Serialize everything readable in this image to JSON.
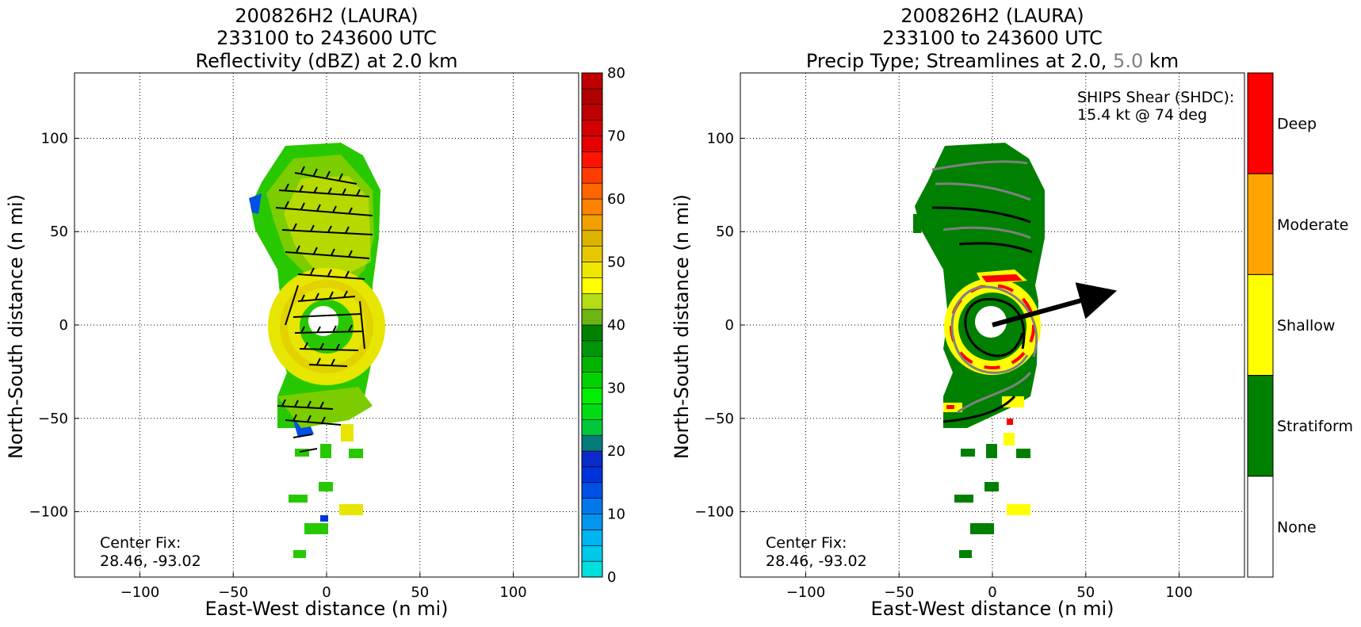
{
  "chart_data": [
    {
      "type": "heatmap",
      "title_lines": [
        "200826H2 (LAURA)",
        "233100 to 243600 UTC",
        "Reflectivity (dBZ) at 2.0 km"
      ],
      "xlabel": "East-West distance (n mi)",
      "ylabel": "North-South distance (n mi)",
      "xlim": [
        -135,
        135
      ],
      "ylim": [
        -135,
        135
      ],
      "xticks": [
        -100,
        -50,
        0,
        50,
        100
      ],
      "yticks": [
        -100,
        -50,
        0,
        50,
        100
      ],
      "grid": true,
      "annotation_lines": [
        "Center Fix:",
        "28.46, -93.02"
      ],
      "colorbar": {
        "range": [
          0,
          80
        ],
        "step": 2.5,
        "ticks": [
          0,
          10,
          20,
          30,
          40,
          50,
          60,
          70,
          80
        ],
        "colors": [
          "#00dede",
          "#00c8e8",
          "#00b4f0",
          "#0096f0",
          "#0078ec",
          "#0050e6",
          "#0032dc",
          "#0a2ac8",
          "#047a7a",
          "#00c83a",
          "#00dc14",
          "#00ee00",
          "#00d200",
          "#00b400",
          "#00960a",
          "#008200",
          "#6cb414",
          "#b4dc14",
          "#ffff00",
          "#f0e600",
          "#e6c800",
          "#dcb400",
          "#f0a000",
          "#ff8200",
          "#ff6400",
          "#ff3c00",
          "#ff1400",
          "#e60000",
          "#d20000",
          "#be0000",
          "#b00000",
          "#c00000",
          "#c8006e",
          "#e600b4",
          "#f000e6",
          "#e650f0",
          "#b464dc",
          "#8c50c8",
          "#6e3c96",
          "#3c1e46",
          "#000000"
        ]
      },
      "shear_arrow": null
    },
    {
      "type": "heatmap",
      "title_lines": [
        "200826H2 (LAURA)",
        "233100 to 243600 UTC"
      ],
      "title_line3": {
        "before": "Precip Type; Streamlines at 2.0, ",
        "highlight": "5.0",
        "after": " km"
      },
      "xlabel": "East-West distance (n mi)",
      "ylabel": "North-South distance (n mi)",
      "xlim": [
        -135,
        135
      ],
      "ylim": [
        -135,
        135
      ],
      "xticks": [
        -100,
        -50,
        0,
        50,
        100
      ],
      "yticks": [
        -100,
        -50,
        0,
        50,
        100
      ],
      "grid": true,
      "annotation_lines": [
        "Center Fix:",
        "28.46, -93.02"
      ],
      "shear_text": [
        "SHIPS Shear (SHDC):",
        "15.4 kt @ 74 deg"
      ],
      "shear_arrow": {
        "from": [
          0,
          0
        ],
        "to": [
          62,
          17
        ]
      },
      "categories": [
        {
          "label": "Deep",
          "color": "#ff0000"
        },
        {
          "label": "Moderate",
          "color": "#ffa500"
        },
        {
          "label": "Shallow",
          "color": "#ffff00"
        },
        {
          "label": "Stratiform",
          "color": "#008000"
        },
        {
          "label": "None",
          "color": "#ffffff"
        }
      ]
    }
  ],
  "colors": {
    "highlight_text": "#808080",
    "streamline_2km": "#000000",
    "streamline_5km": "#808080"
  }
}
